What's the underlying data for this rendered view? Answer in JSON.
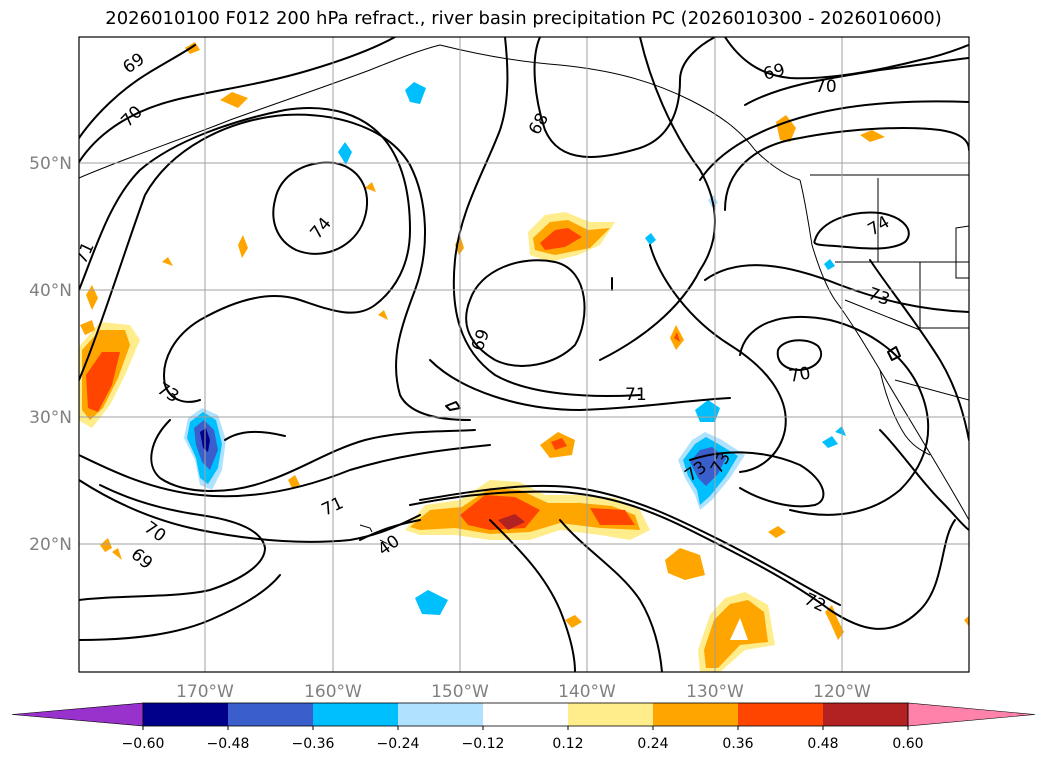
{
  "title": "2026010100 F012 200 hPa refract., river basin precipitation PC (2026010300 - 2026010600)",
  "lat_labels": [
    "50°N",
    "40°N",
    "30°N",
    "20°N"
  ],
  "lon_labels": [
    "170°W",
    "160°W",
    "150°W",
    "140°W",
    "130°W",
    "120°W"
  ],
  "contour_labels": [
    "69",
    "70",
    "71",
    "73",
    "74",
    "69",
    "68",
    "69",
    "70",
    "71",
    "73",
    "74",
    "73",
    "70",
    "71",
    "70",
    "69",
    "40",
    "72",
    "73"
  ],
  "colorbar": {
    "colors": [
      "#9932cc",
      "#00008b",
      "#3a5fcd",
      "#00bfff",
      "#b0e2ff",
      "#ffffff",
      "#ffec8b",
      "#ffa500",
      "#ff4500",
      "#b22222",
      "#ff82ab"
    ],
    "ticks": [
      "−0.60",
      "−0.48",
      "−0.36",
      "−0.24",
      "−0.12",
      "0.12",
      "0.24",
      "0.36",
      "0.48",
      "0.60"
    ]
  }
}
